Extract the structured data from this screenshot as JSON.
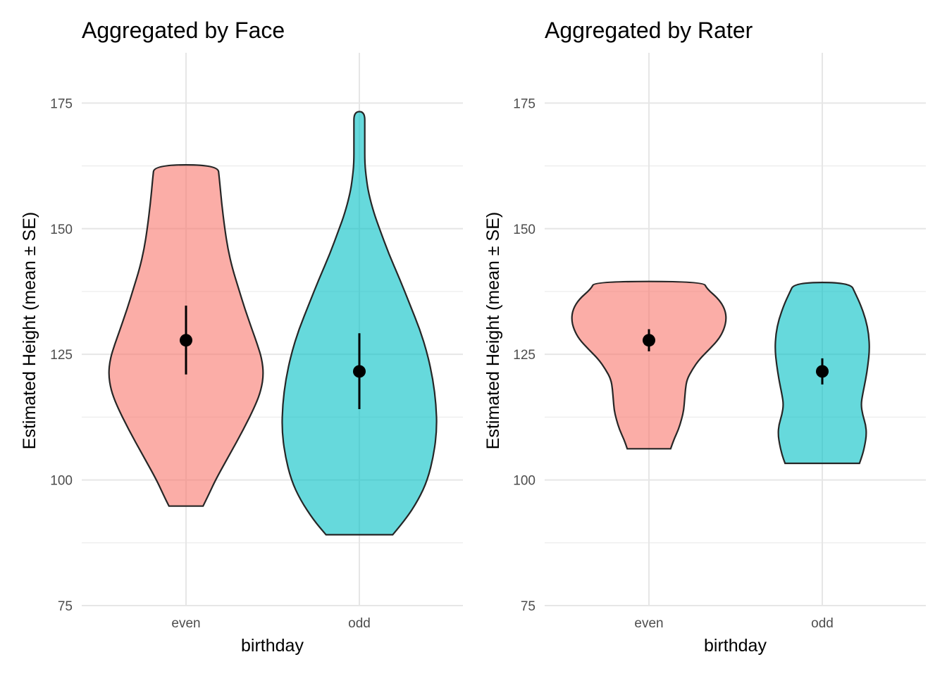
{
  "chart_data": [
    {
      "type": "violin",
      "title": "Aggregated by Face",
      "xlabel": "birthday",
      "ylabel": "Estimated Height (mean ± SE)",
      "categories": [
        "even",
        "odd"
      ],
      "ylim": [
        75,
        185
      ],
      "yticks": [
        75,
        100,
        125,
        150,
        175
      ],
      "grid": true,
      "colors": {
        "even": "#F8766D",
        "odd": "#00BFC4"
      },
      "series": [
        {
          "category": "even",
          "mean": 127.8,
          "se_low": 121.0,
          "se_high": 134.7,
          "density": [
            [
              94.8,
              0.22
            ],
            [
              97,
              0.29
            ],
            [
              100,
              0.38
            ],
            [
              105,
              0.56
            ],
            [
              110,
              0.74
            ],
            [
              115,
              0.9
            ],
            [
              118,
              0.97
            ],
            [
              121,
              1.0
            ],
            [
              124,
              0.98
            ],
            [
              127,
              0.92
            ],
            [
              130,
              0.85
            ],
            [
              134,
              0.76
            ],
            [
              138,
              0.68
            ],
            [
              142,
              0.6
            ],
            [
              146,
              0.54
            ],
            [
              150,
              0.5
            ],
            [
              155,
              0.46
            ],
            [
              160,
              0.43
            ],
            [
              162.7,
              0.41
            ]
          ]
        },
        {
          "category": "odd",
          "mean": 121.6,
          "se_low": 114.1,
          "se_high": 129.2,
          "density": [
            [
              89.1,
              0.43
            ],
            [
              92,
              0.59
            ],
            [
              96,
              0.76
            ],
            [
              100,
              0.88
            ],
            [
              105,
              0.96
            ],
            [
              110,
              1.0
            ],
            [
              115,
              0.99
            ],
            [
              120,
              0.95
            ],
            [
              125,
              0.88
            ],
            [
              130,
              0.78
            ],
            [
              135,
              0.65
            ],
            [
              140,
              0.52
            ],
            [
              145,
              0.38
            ],
            [
              150,
              0.26
            ],
            [
              153,
              0.19
            ],
            [
              157,
              0.12
            ],
            [
              160,
              0.09
            ],
            [
              163,
              0.07
            ],
            [
              167,
              0.07
            ],
            [
              170,
              0.07
            ],
            [
              173.3,
              0.07
            ]
          ]
        }
      ]
    },
    {
      "type": "violin",
      "title": "Aggregated by Rater",
      "xlabel": "birthday",
      "ylabel": "Estimated Height (mean ± SE)",
      "categories": [
        "even",
        "odd"
      ],
      "ylim": [
        75,
        185
      ],
      "yticks": [
        75,
        100,
        125,
        150,
        175
      ],
      "grid": true,
      "colors": {
        "even": "#F8766D",
        "odd": "#00BFC4"
      },
      "series": [
        {
          "category": "even",
          "mean": 127.8,
          "se_low": 125.6,
          "se_high": 130.0,
          "density": [
            [
              106.2,
              0.28
            ],
            [
              108,
              0.32
            ],
            [
              110,
              0.38
            ],
            [
              112,
              0.42
            ],
            [
              114,
              0.45
            ],
            [
              116,
              0.46
            ],
            [
              118,
              0.47
            ],
            [
              120,
              0.49
            ],
            [
              122,
              0.56
            ],
            [
              124,
              0.65
            ],
            [
              126,
              0.78
            ],
            [
              128,
              0.9
            ],
            [
              130,
              0.97
            ],
            [
              132,
              1.0
            ],
            [
              134,
              0.98
            ],
            [
              136,
              0.9
            ],
            [
              138,
              0.75
            ],
            [
              139.5,
              0.7
            ]
          ]
        },
        {
          "category": "odd",
          "mean": 121.6,
          "se_low": 119.0,
          "se_high": 124.2,
          "density": [
            [
              103.3,
              0.48
            ],
            [
              105,
              0.52
            ],
            [
              107,
              0.55
            ],
            [
              109,
              0.57
            ],
            [
              111,
              0.56
            ],
            [
              113,
              0.52
            ],
            [
              115,
              0.5
            ],
            [
              117,
              0.52
            ],
            [
              120,
              0.56
            ],
            [
              123,
              0.59
            ],
            [
              126,
              0.61
            ],
            [
              129,
              0.6
            ],
            [
              132,
              0.56
            ],
            [
              135,
              0.49
            ],
            [
              137,
              0.43
            ],
            [
              139.3,
              0.36
            ]
          ]
        }
      ]
    }
  ]
}
